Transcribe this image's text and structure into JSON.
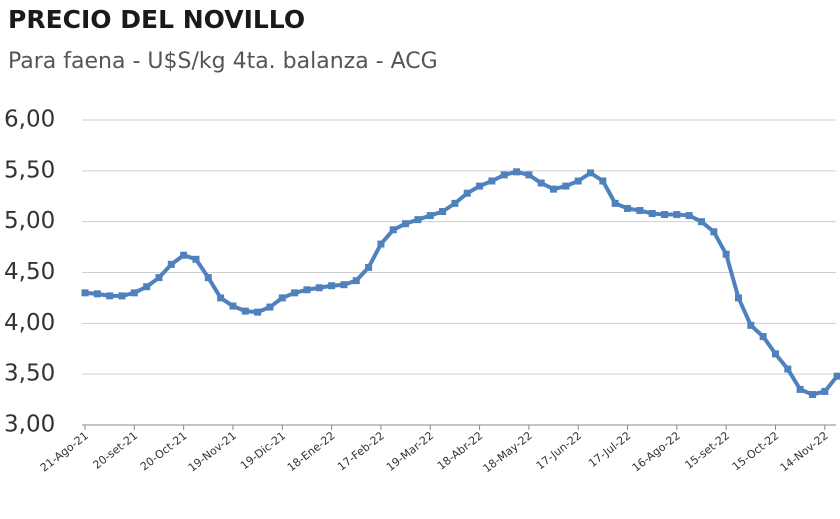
{
  "chart_data": {
    "type": "line",
    "title": "PRECIO DEL NOVILLO",
    "subtitle": "Para faena - U$S/kg 4ta. balanza - ACG",
    "categories": [
      "21-Ago-21",
      null,
      null,
      null,
      "20-set-21",
      null,
      null,
      null,
      "20-Oct-21",
      null,
      null,
      null,
      "19-Nov-21",
      null,
      null,
      null,
      "19-Dic-21",
      null,
      null,
      null,
      "18-Ene-22",
      null,
      null,
      null,
      "17-Feb-22",
      null,
      null,
      null,
      "19-Mar-22",
      null,
      null,
      null,
      "18-Abr-22",
      null,
      null,
      null,
      "18-May-22",
      null,
      null,
      null,
      "17-Jun-22",
      null,
      null,
      null,
      "17-Jul-22",
      null,
      null,
      null,
      "16-Ago-22",
      null,
      null,
      null,
      "15-set-22",
      null,
      null,
      null,
      "15-Oct-22",
      null,
      null,
      null,
      "14-Nov-22",
      null
    ],
    "series": [
      {
        "color": "#4f81bd",
        "values": [
          4.3,
          4.29,
          4.27,
          4.27,
          4.3,
          4.36,
          4.45,
          4.58,
          4.67,
          4.63,
          4.45,
          4.25,
          4.17,
          4.12,
          4.11,
          4.16,
          4.25,
          4.3,
          4.33,
          4.35,
          4.37,
          4.38,
          4.42,
          4.55,
          4.78,
          4.92,
          4.98,
          5.02,
          5.06,
          5.1,
          5.18,
          5.28,
          5.35,
          5.4,
          5.46,
          5.49,
          5.46,
          5.38,
          5.32,
          5.35,
          5.4,
          5.48,
          5.4,
          5.18,
          5.13,
          5.11,
          5.08,
          5.07,
          5.07,
          5.06,
          5.0,
          4.9,
          4.68,
          4.25,
          3.98,
          3.87,
          3.7,
          3.55,
          3.35,
          3.3,
          3.33,
          3.48
        ]
      }
    ],
    "ylim": [
      3,
      6
    ],
    "yticks": [
      {
        "value": 3,
        "label": "3,00"
      },
      {
        "value": 3.5,
        "label": "3,50"
      },
      {
        "value": 4,
        "label": "4,00"
      },
      {
        "value": 4.5,
        "label": "4,50"
      },
      {
        "value": 5,
        "label": "5,00"
      },
      {
        "value": 5.5,
        "label": "5,50"
      },
      {
        "value": 6,
        "label": "6,00"
      }
    ],
    "grid": true
  }
}
